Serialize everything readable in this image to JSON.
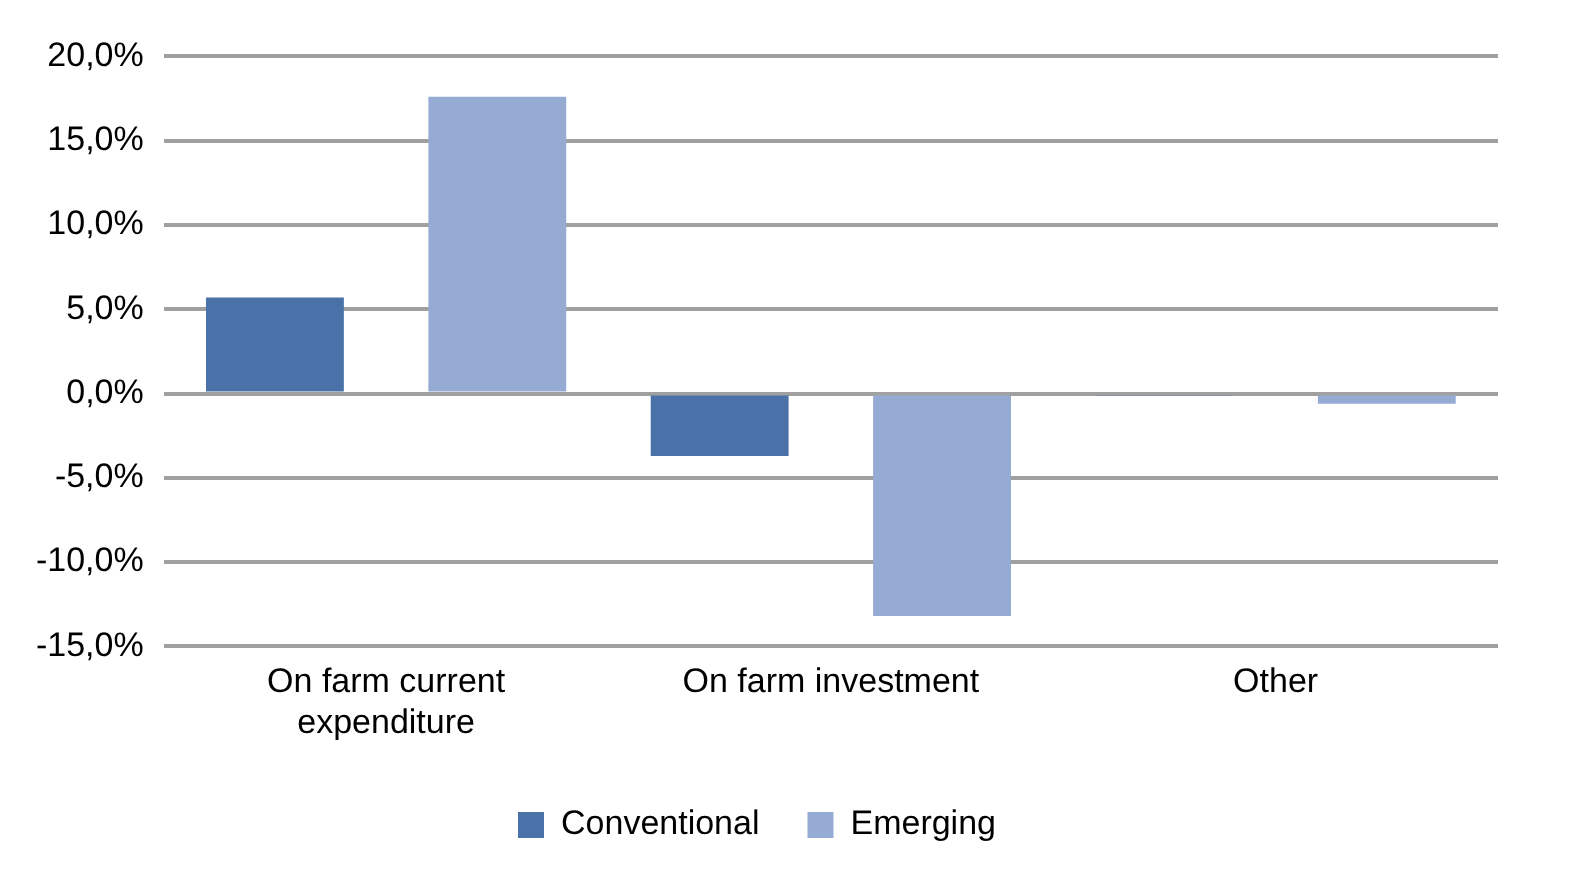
{
  "chart_data": {
    "type": "bar",
    "categories": [
      "On farm current expenditure",
      "On farm investment",
      "Other"
    ],
    "series": [
      {
        "name": "Conventional",
        "color": "#4a72a8",
        "values": [
          5.7,
          -3.7,
          -0.1
        ]
      },
      {
        "name": "Emerging",
        "color": "#95abd3",
        "values": [
          17.6,
          -13.2,
          -0.6
        ]
      }
    ],
    "ylim": [
      -15,
      20
    ],
    "yticks": [
      {
        "value": -15,
        "label": "-15,0%"
      },
      {
        "value": -10,
        "label": "-10,0%"
      },
      {
        "value": -5,
        "label": "-5,0%"
      },
      {
        "value": 0,
        "label": "0,0%"
      },
      {
        "value": 5,
        "label": "5,0%"
      },
      {
        "value": 10,
        "label": "10,0%"
      },
      {
        "value": 15,
        "label": "15,0%"
      },
      {
        "value": 20,
        "label": "20,0%"
      }
    ],
    "grid": "y",
    "legend": "bottom"
  }
}
